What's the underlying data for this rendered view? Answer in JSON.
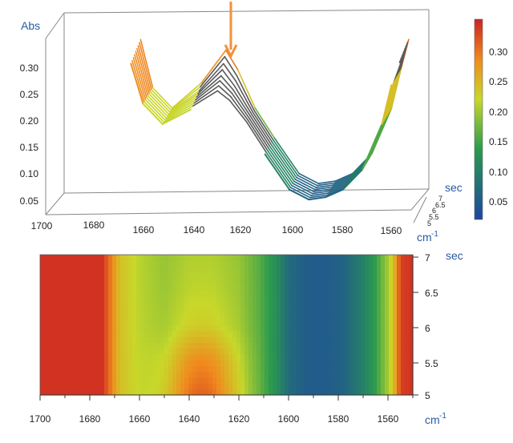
{
  "chart_data": [
    {
      "type": "surface3d",
      "ylabel": "Abs",
      "xlabel": "cm",
      "xlabel_sup": "-1",
      "zlabel": "sec",
      "x_ticks": [
        "1700",
        "1680",
        "1660",
        "1640",
        "1620",
        "1600",
        "1580",
        "1560"
      ],
      "y_ticks": [
        "0.05",
        "0.10",
        "0.15",
        "0.20",
        "0.25",
        "0.30"
      ],
      "z_ticks": [
        "5",
        "5.5",
        "6",
        "6.5",
        "7"
      ],
      "xlim": [
        1700,
        1550
      ],
      "ylim": [
        0.02,
        0.37
      ],
      "zlim": [
        5,
        7
      ],
      "band_start_wavenumber": 1665,
      "annotation": "arrow marking the peak near 1630 cm-1",
      "series": [
        {
          "name": "t=5.0",
          "x": [
            1665,
            1660,
            1652,
            1640,
            1630,
            1625,
            1618,
            1610,
            1600,
            1592,
            1585,
            1578,
            1570,
            1562,
            1558,
            1555
          ],
          "values": [
            0.32,
            0.24,
            0.2,
            0.23,
            0.257,
            0.24,
            0.2,
            0.14,
            0.07,
            0.05,
            0.055,
            0.07,
            0.11,
            0.2,
            0.28,
            0.32
          ]
        },
        {
          "name": "t=5.25",
          "x": [
            1665,
            1660,
            1652,
            1640,
            1630,
            1625,
            1618,
            1610,
            1600,
            1592,
            1585,
            1578,
            1570,
            1562,
            1558,
            1555
          ],
          "values": [
            0.322,
            0.24,
            0.2,
            0.232,
            0.262,
            0.243,
            0.2,
            0.14,
            0.07,
            0.05,
            0.055,
            0.07,
            0.11,
            0.2,
            0.28,
            0.322
          ]
        },
        {
          "name": "t=5.5",
          "x": [
            1665,
            1660,
            1652,
            1640,
            1630,
            1625,
            1618,
            1610,
            1600,
            1592,
            1585,
            1578,
            1570,
            1562,
            1558,
            1555
          ],
          "values": [
            0.324,
            0.24,
            0.2,
            0.234,
            0.268,
            0.246,
            0.2,
            0.14,
            0.07,
            0.05,
            0.055,
            0.07,
            0.11,
            0.2,
            0.28,
            0.324
          ]
        },
        {
          "name": "t=5.75",
          "x": [
            1665,
            1660,
            1652,
            1640,
            1630,
            1625,
            1618,
            1610,
            1600,
            1592,
            1585,
            1578,
            1570,
            1562,
            1558,
            1555
          ],
          "values": [
            0.326,
            0.24,
            0.2,
            0.236,
            0.274,
            0.249,
            0.2,
            0.14,
            0.07,
            0.05,
            0.055,
            0.07,
            0.11,
            0.2,
            0.28,
            0.326
          ]
        },
        {
          "name": "t=6.0",
          "x": [
            1665,
            1660,
            1652,
            1640,
            1630,
            1625,
            1618,
            1610,
            1600,
            1592,
            1585,
            1578,
            1570,
            1562,
            1558,
            1555
          ],
          "values": [
            0.328,
            0.24,
            0.2,
            0.238,
            0.28,
            0.252,
            0.2,
            0.14,
            0.07,
            0.05,
            0.055,
            0.07,
            0.11,
            0.2,
            0.28,
            0.328
          ]
        },
        {
          "name": "t=6.25",
          "x": [
            1665,
            1660,
            1652,
            1640,
            1630,
            1625,
            1618,
            1610,
            1600,
            1592,
            1585,
            1578,
            1570,
            1562,
            1558,
            1555
          ],
          "values": [
            0.33,
            0.24,
            0.2,
            0.24,
            0.288,
            0.256,
            0.2,
            0.14,
            0.07,
            0.05,
            0.055,
            0.07,
            0.11,
            0.2,
            0.28,
            0.33
          ]
        },
        {
          "name": "t=6.5",
          "x": [
            1665,
            1660,
            1652,
            1640,
            1630,
            1625,
            1618,
            1610,
            1600,
            1592,
            1585,
            1578,
            1570,
            1562,
            1558,
            1555
          ],
          "values": [
            0.332,
            0.24,
            0.2,
            0.242,
            0.296,
            0.262,
            0.2,
            0.14,
            0.07,
            0.05,
            0.055,
            0.07,
            0.11,
            0.2,
            0.28,
            0.332
          ]
        },
        {
          "name": "t=6.75",
          "x": [
            1665,
            1660,
            1652,
            1640,
            1630,
            1625,
            1618,
            1610,
            1600,
            1592,
            1585,
            1578,
            1570,
            1562,
            1558,
            1555
          ],
          "values": [
            0.334,
            0.24,
            0.2,
            0.246,
            0.306,
            0.268,
            0.2,
            0.14,
            0.07,
            0.05,
            0.055,
            0.07,
            0.11,
            0.2,
            0.28,
            0.334
          ]
        },
        {
          "name": "t=7.0",
          "x": [
            1665,
            1660,
            1652,
            1640,
            1630,
            1625,
            1618,
            1610,
            1600,
            1592,
            1585,
            1578,
            1570,
            1562,
            1558,
            1555
          ],
          "values": [
            0.336,
            0.24,
            0.2,
            0.25,
            0.315,
            0.275,
            0.2,
            0.14,
            0.07,
            0.05,
            0.055,
            0.07,
            0.11,
            0.2,
            0.28,
            0.336
          ]
        }
      ]
    },
    {
      "type": "heatmap",
      "xlabel": "cm",
      "xlabel_sup": "-1",
      "ylabel": "sec",
      "x_ticks": [
        "1700",
        "1680",
        "1660",
        "1640",
        "1620",
        "1600",
        "1580",
        "1560"
      ],
      "y_ticks": [
        "5",
        "5.5",
        "6",
        "6.5",
        "7"
      ],
      "xlim": [
        1700,
        1550
      ],
      "ylim": [
        5,
        7
      ],
      "profile_x": [
        1700,
        1690,
        1680,
        1675,
        1672,
        1668,
        1660,
        1650,
        1640,
        1630,
        1620,
        1612,
        1605,
        1600,
        1592,
        1585,
        1578,
        1570,
        1565,
        1560,
        1557,
        1555,
        1550
      ],
      "profile_values": [
        0.34,
        0.34,
        0.34,
        0.34,
        0.3,
        0.24,
        0.21,
        0.19,
        0.2,
        0.2,
        0.19,
        0.16,
        0.12,
        0.07,
        0.05,
        0.05,
        0.06,
        0.1,
        0.14,
        0.2,
        0.26,
        0.33,
        0.34
      ],
      "peak": {
        "center": 1635,
        "width": 15,
        "amplitude": 0.11,
        "times": [
          5,
          5.5,
          6,
          6.5,
          7
        ],
        "decay": [
          1.0,
          0.75,
          0.25,
          0.12,
          0.05
        ]
      }
    },
    {
      "type": "colorbar",
      "ticks": [
        "0.05",
        "0.10",
        "0.15",
        "0.20",
        "0.25",
        "0.30"
      ],
      "range": [
        0.02,
        0.35
      ],
      "stops": [
        "#1e46a0",
        "#2a9a4e",
        "#c8d82a",
        "#f08a1e",
        "#cc2222"
      ]
    }
  ]
}
